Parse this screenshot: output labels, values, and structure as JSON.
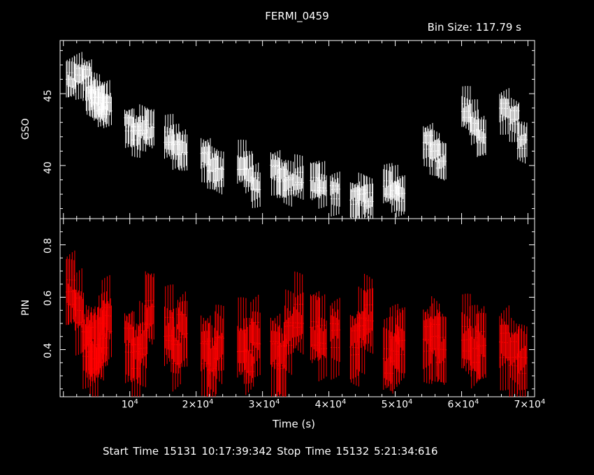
{
  "chart_data": [
    {
      "type": "line",
      "title": "FERMI_0459",
      "subtitle": "Bin Size: 117.79 s",
      "ylabel": "GSO",
      "ylim": [
        36.3,
        48.7
      ],
      "xlim": [
        -500,
        71000
      ],
      "ytick_labels": [
        "40",
        "45"
      ],
      "ytick_values": [
        40,
        45
      ],
      "color": "#ffffff",
      "x": [
        1200,
        2400,
        3600,
        4200,
        4800,
        5400,
        6000,
        6600,
        10000,
        11000,
        12000,
        13000,
        16000,
        17000,
        18000,
        21500,
        22500,
        23500,
        27000,
        28000,
        29000,
        32000,
        33000,
        34000,
        35500,
        38000,
        39000,
        41000,
        44000,
        45000,
        46000,
        49000,
        50000,
        50800,
        55000,
        56000,
        57000,
        60800,
        62000,
        63000,
        66500,
        68000,
        69200
      ],
      "values": [
        46.0,
        46.3,
        46.2,
        45.0,
        44.8,
        44.3,
        44.0,
        44.3,
        42.8,
        42.3,
        42.6,
        42.5,
        41.8,
        41.3,
        41.1,
        40.6,
        39.9,
        39.5,
        40.0,
        39.5,
        38.6,
        39.7,
        39.2,
        38.8,
        39.0,
        38.8,
        38.6,
        38.2,
        37.7,
        37.9,
        37.6,
        38.5,
        38.3,
        38.0,
        41.6,
        41.0,
        40.3,
        43.8,
        42.9,
        42.0,
        43.9,
        43.3,
        41.7
      ]
    },
    {
      "type": "line",
      "ylabel": "PIN",
      "xlabel": "Time (s)",
      "ylim": [
        0.22,
        0.9
      ],
      "xlim": [
        -500,
        71000
      ],
      "ytick_labels": [
        "0.4",
        "0.6",
        "0.8"
      ],
      "ytick_values": [
        0.4,
        0.6,
        0.8
      ],
      "xtick_labels": [
        [
          "10",
          "4"
        ],
        [
          "2×10",
          "4"
        ],
        [
          "3×10",
          "4"
        ],
        [
          "4×10",
          "4"
        ],
        [
          "5×10",
          "4"
        ],
        [
          "6×10",
          "4"
        ],
        [
          "7×10",
          "4"
        ]
      ],
      "xtick_values": [
        10000,
        20000,
        30000,
        40000,
        50000,
        60000,
        70000
      ],
      "color": "#ff0000",
      "x": [
        1200,
        2400,
        3600,
        4200,
        4800,
        5400,
        6000,
        6600,
        10000,
        11000,
        12000,
        13000,
        16000,
        17000,
        18000,
        21500,
        22500,
        23500,
        27000,
        28000,
        29000,
        32000,
        33000,
        34000,
        35500,
        38000,
        39000,
        41000,
        44000,
        45000,
        46000,
        49000,
        50000,
        50800,
        55000,
        56000,
        57000,
        60800,
        62000,
        63000,
        66500,
        68000,
        69200
      ],
      "values": [
        0.62,
        0.55,
        0.42,
        0.44,
        0.37,
        0.4,
        0.45,
        0.52,
        0.43,
        0.38,
        0.42,
        0.55,
        0.47,
        0.4,
        0.48,
        0.4,
        0.35,
        0.42,
        0.42,
        0.37,
        0.45,
        0.4,
        0.36,
        0.47,
        0.52,
        0.47,
        0.44,
        0.46,
        0.42,
        0.48,
        0.52,
        0.36,
        0.4,
        0.43,
        0.44,
        0.45,
        0.4,
        0.44,
        0.4,
        0.42,
        0.42,
        0.38,
        0.36
      ]
    }
  ],
  "xlabel": "Time (s)",
  "footer": "Start Time 15131 10:17:39:342     Stop Time 15132  5:21:34:616"
}
